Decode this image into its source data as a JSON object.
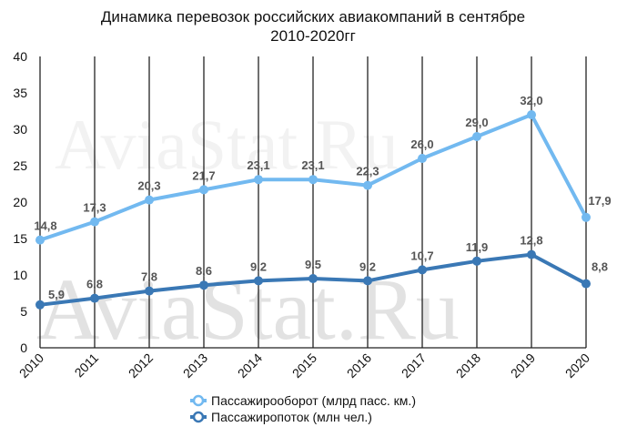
{
  "chart_data": {
    "type": "line",
    "title_lines": [
      "Динамика перевозок российских авиакомпаний в сентябре",
      "2010-2020гг"
    ],
    "categories": [
      "2010",
      "2011",
      "2012",
      "2013",
      "2014",
      "2015",
      "2016",
      "2017",
      "2018",
      "2019",
      "2020"
    ],
    "ylim": [
      0,
      40
    ],
    "yticks": [
      0,
      5,
      10,
      15,
      20,
      25,
      30,
      35,
      40
    ],
    "grid": "vertical",
    "legend_position": "bottom",
    "series": [
      {
        "name": "Пассажирооборот (млрд пасс. км.)",
        "color": "#72b9f0",
        "values": [
          14.8,
          17.3,
          20.3,
          21.7,
          23.1,
          23.1,
          22.3,
          26.0,
          29.0,
          32.0,
          17.9
        ],
        "labels": [
          "14,8",
          "17,3",
          "20,3",
          "21,7",
          "23,1",
          "23,1",
          "22,3",
          "26,0",
          "29,0",
          "32,0",
          "17,9"
        ]
      },
      {
        "name": "Пассажиропоток (млн чел.)",
        "color": "#3a78b5",
        "values": [
          5.9,
          6.8,
          7.8,
          8.6,
          9.2,
          9.5,
          9.2,
          10.7,
          11.9,
          12.8,
          8.8
        ],
        "labels": [
          "5,9",
          "6,8",
          "7,8",
          "8,6",
          "9,2",
          "9,5",
          "9,2",
          "10,7",
          "11,9",
          "12,8",
          "8,8"
        ]
      }
    ]
  },
  "watermark": "AviaStat.Ru"
}
